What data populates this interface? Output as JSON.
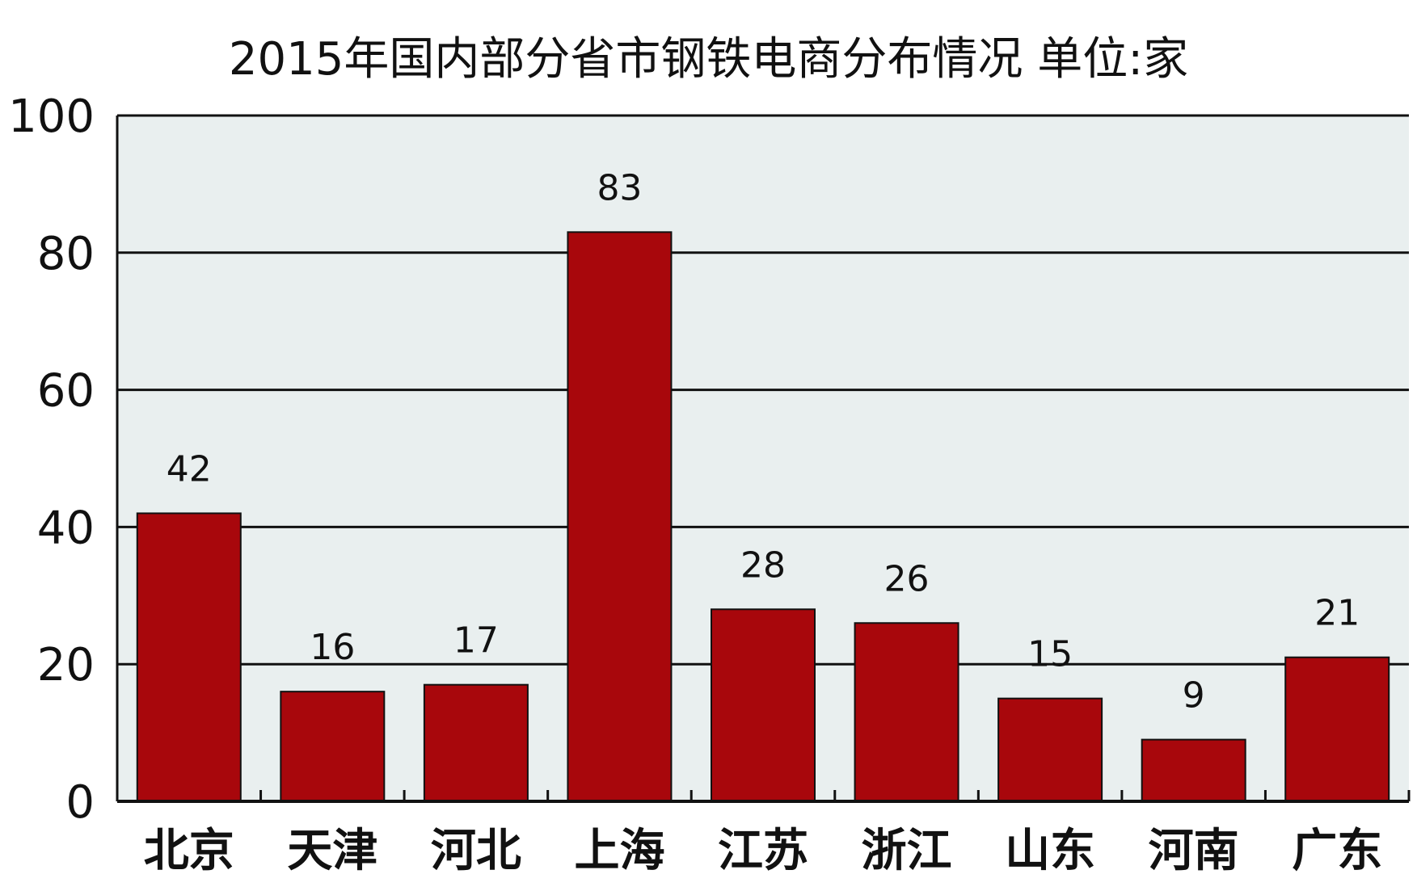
{
  "chart_data": {
    "type": "bar",
    "title": "2015年国内部分省市钢铁电商分布情况  单位:家",
    "categories": [
      "北京",
      "天津",
      "河北",
      "上海",
      "江苏",
      "浙江",
      "山东",
      "河南",
      "广东"
    ],
    "values": [
      42,
      16,
      17,
      83,
      28,
      26,
      15,
      9,
      21
    ],
    "data_labels": [
      "42",
      "16",
      "17",
      "83",
      "28",
      "26",
      "15",
      "9",
      "21"
    ],
    "ylim": [
      0,
      100
    ],
    "yticks": [
      0,
      20,
      40,
      60,
      80,
      100
    ],
    "ytick_labels": [
      "0",
      "20",
      "40",
      "60",
      "80",
      "100"
    ],
    "xlabel": "",
    "ylabel": "",
    "grid": true,
    "colors": {
      "bar": "#a8070c",
      "plot_background": "#e9efef",
      "grid": "#111111"
    }
  }
}
